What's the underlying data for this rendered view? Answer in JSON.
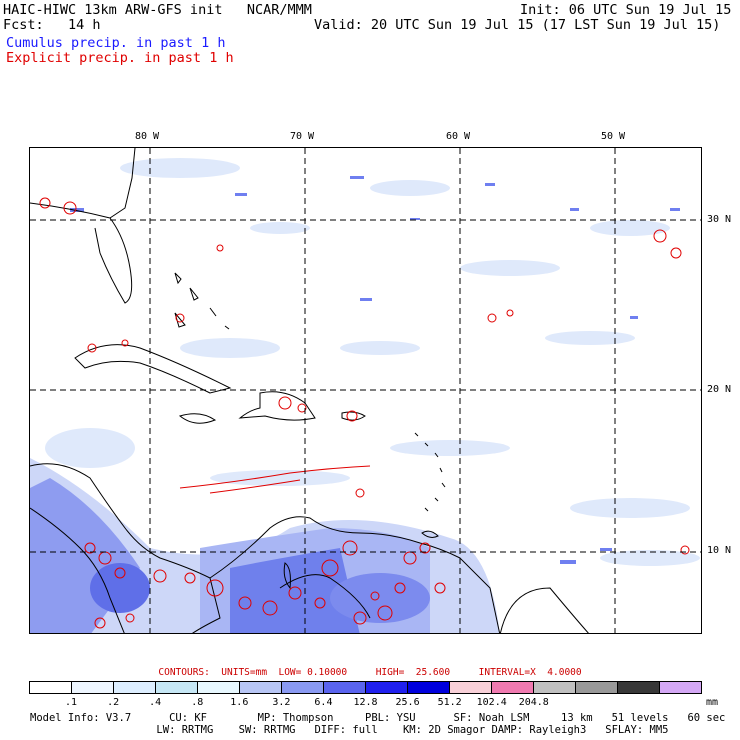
{
  "header": {
    "model_line": "HAIC-HIWC 13km ARW-GFS init   NCAR/MMM",
    "fcst_line": "Fcst:   14 h",
    "init_line": "Init: 06 UTC Sun 19 Jul 15",
    "valid_line": "Valid: 20 UTC Sun 19 Jul 15 (17 LST Sun 19 Jul 15)",
    "cumulus_label": "Cumulus precip. in past 1 h",
    "explicit_label": "Explicit precip. in past 1 h",
    "cumulus_color": "#1a1aff",
    "explicit_color": "#e00000"
  },
  "map": {
    "lon_labels": [
      "80 W",
      "70 W",
      "60 W",
      "50 W"
    ],
    "lat_labels": [
      "30 N",
      "20 N",
      "10 N"
    ]
  },
  "contours": {
    "text": "CONTOURS:  UNITS=mm  LOW= 0.10000     HIGH=  25.600     INTERVAL=X  4.0000"
  },
  "colorbar": {
    "colors": [
      "#ffffff",
      "#eef6ff",
      "#ddeeff",
      "#c6e7f5",
      "#e8f8ff",
      "#b8c6f5",
      "#8a9af2",
      "#5a64ee",
      "#2020ee",
      "#0000dd",
      "#f8d0d8",
      "#f07ab0",
      "#c0c0c0",
      "#999999",
      "#383838",
      "#d4a8f5"
    ],
    "ticks": [
      ".1",
      ".2",
      ".4",
      ".8",
      "1.6",
      "3.2",
      "6.4",
      "12.8",
      "25.6",
      "51.2",
      "102.4",
      "204.8"
    ],
    "unit": "mm"
  },
  "footer": {
    "line1": "Model Info: V3.7      CU: KF        MP: Thompson     PBL: YSU      SF: Noah LSM     13 km   51 levels   60 sec",
    "line2": "                    LW: RRTMG    SW: RRTMG   DIFF: full    KM: 2D Smagor DAMP: Rayleigh3   SFLAY: MM5"
  }
}
